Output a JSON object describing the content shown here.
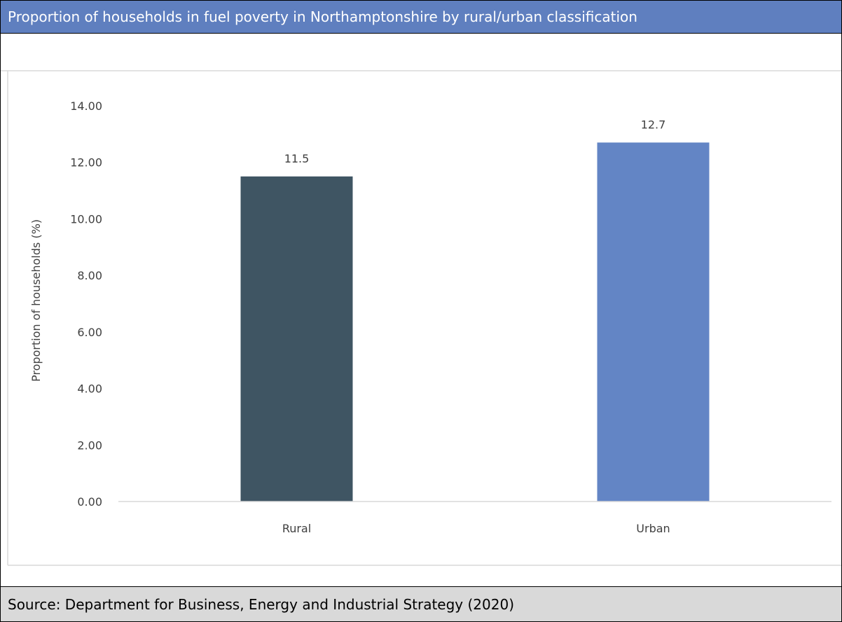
{
  "header": {
    "title": "Proportion of households in fuel poverty in Northamptonshire by rural/urban classification"
  },
  "footer": {
    "source": "Source: Department for Business, Energy and Industrial Strategy (2020)"
  },
  "chart_data": {
    "type": "bar",
    "categories": [
      "Rural",
      "Urban"
    ],
    "values": [
      11.5,
      12.7
    ],
    "data_labels": [
      "11.5",
      "12.7"
    ],
    "colors": [
      "#3f5563",
      "#6385c5"
    ],
    "ylabel": "Proportion of households (%)",
    "xlabel": "",
    "ylim": [
      0,
      14
    ],
    "yticks": [
      0,
      2,
      4,
      6,
      8,
      10,
      12,
      14
    ],
    "ytick_labels": [
      "0.00",
      "2.00",
      "4.00",
      "6.00",
      "8.00",
      "10.00",
      "12.00",
      "14.00"
    ],
    "grid": false,
    "legend": "none"
  }
}
